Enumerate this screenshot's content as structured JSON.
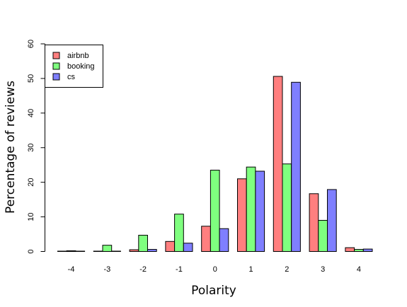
{
  "chart_data": {
    "type": "bar",
    "title": "",
    "xlabel": "Polarity",
    "ylabel": "Percentage of reviews",
    "categories": [
      "-4",
      "-3",
      "-2",
      "-1",
      "0",
      "1",
      "2",
      "3",
      "4"
    ],
    "ylim": [
      0,
      60
    ],
    "yticks": [
      0,
      10,
      20,
      30,
      40,
      50,
      60
    ],
    "grid": false,
    "legend_position": "top-left",
    "series": [
      {
        "name": "airbnb",
        "color": "#ff7f7f",
        "values": [
          0.1,
          0.1,
          0.5,
          2.9,
          7.3,
          21.0,
          50.6,
          16.7,
          1.1
        ]
      },
      {
        "name": "booking",
        "color": "#7fff7f",
        "values": [
          0.2,
          1.8,
          4.7,
          10.8,
          23.5,
          24.4,
          25.3,
          9.0,
          0.6
        ]
      },
      {
        "name": "cs",
        "color": "#7f7fff",
        "values": [
          0.1,
          0.1,
          0.6,
          2.4,
          6.6,
          23.2,
          48.9,
          17.9,
          0.7
        ]
      }
    ]
  }
}
